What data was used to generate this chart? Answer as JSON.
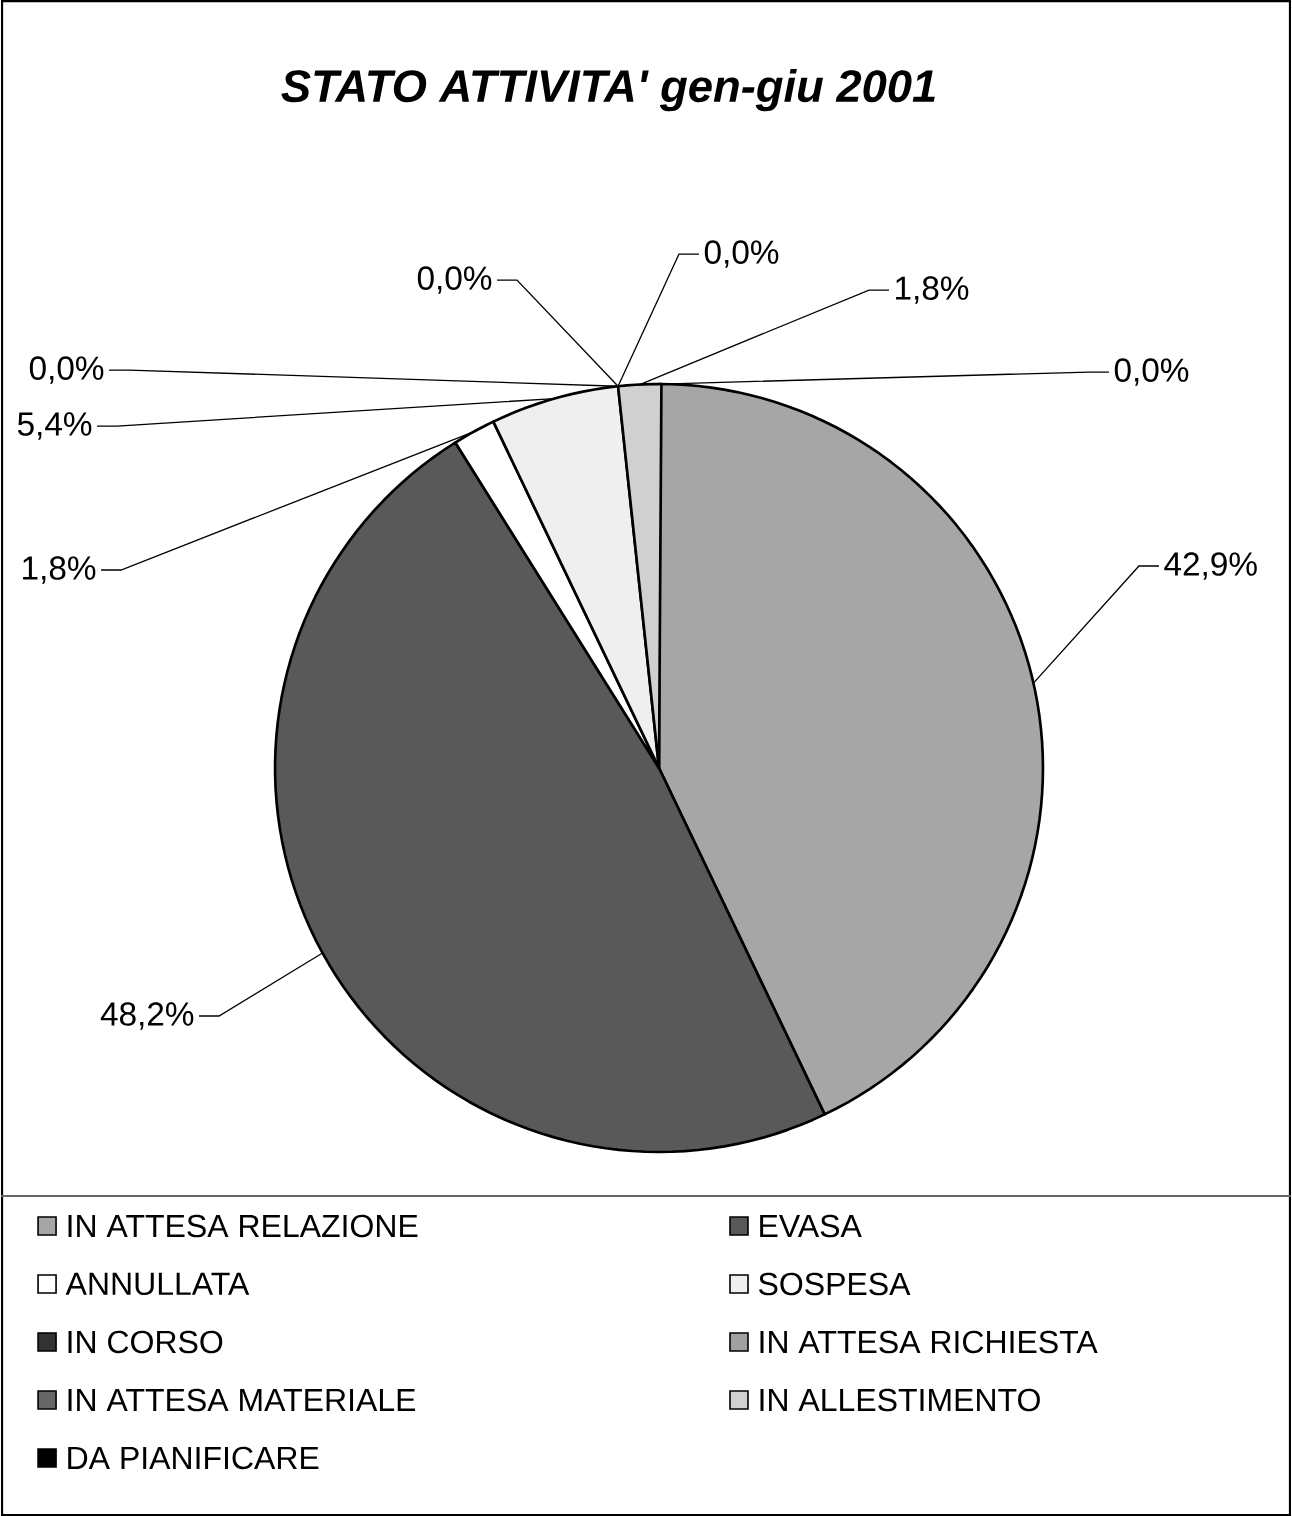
{
  "chart_data": {
    "type": "pie",
    "title": "STATO ATTIVITA' gen-giu 2001",
    "categories": [
      "IN ATTESA RELAZIONE",
      "EVASA",
      "ANNULLATA",
      "SOSPESA",
      "IN CORSO",
      "IN ATTESA RICHIESTA",
      "IN ATTESA MATERIALE",
      "IN ALLESTIMENTO",
      "DA PIANIFICARE"
    ],
    "values": [
      42.9,
      48.2,
      1.8,
      5.4,
      0.0,
      0.0,
      0.0,
      1.8,
      0.0
    ],
    "value_labels": [
      "42,9%",
      "48,2%",
      "1,8%",
      "5,4%",
      "0,0%",
      "0,0%",
      "0,0%",
      "1,8%",
      "0,0%"
    ],
    "colors": [
      "#a6a6a6",
      "#595959",
      "#ffffff",
      "#efefef",
      "#333333",
      "#a0a0a0",
      "#666666",
      "#d0d0d0",
      "#000000"
    ],
    "legend": "bottom"
  }
}
